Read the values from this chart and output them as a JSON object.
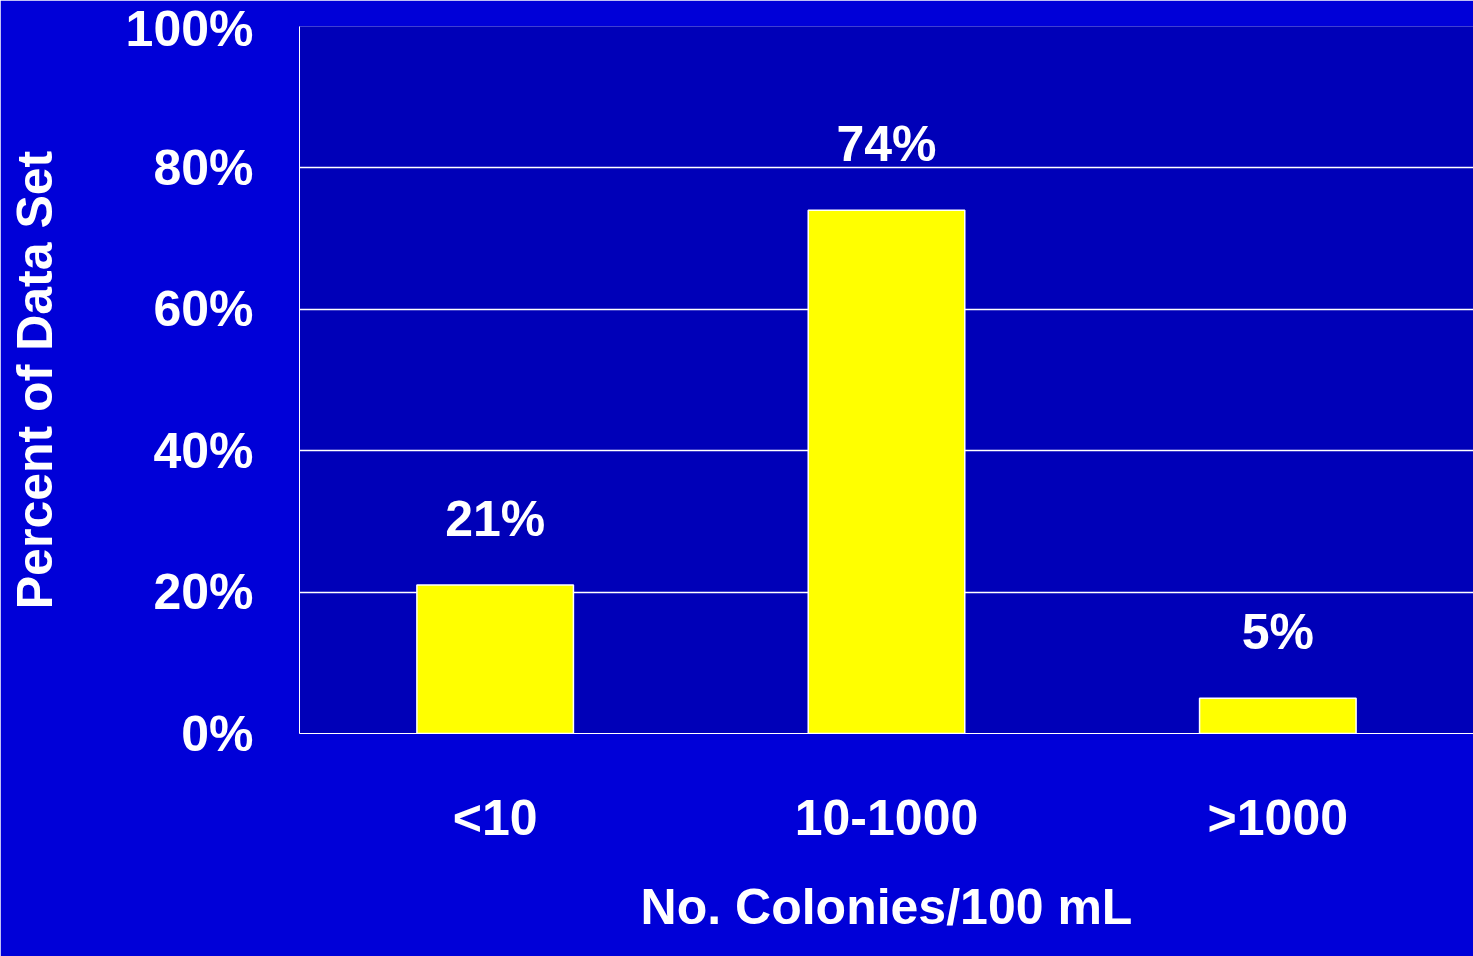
{
  "chart_data": {
    "type": "bar",
    "xlabel": "No. Colonies/100 mL",
    "ylabel": "Percent of Data Set",
    "categories": [
      "<10",
      "10-1000",
      ">1000"
    ],
    "values": [
      21,
      74,
      5
    ],
    "color": "#ffff00",
    "value_labels": [
      "21%",
      "74%",
      "5%"
    ],
    "ylim": [
      0,
      100
    ],
    "yticks": [
      {
        "value": 0,
        "label": "0%"
      },
      {
        "value": 20,
        "label": "20%"
      },
      {
        "value": 40,
        "label": "40%"
      },
      {
        "value": 60,
        "label": "60%"
      },
      {
        "value": 80,
        "label": "80%"
      },
      {
        "value": 100,
        "label": "100%"
      }
    ],
    "grid": "y"
  }
}
